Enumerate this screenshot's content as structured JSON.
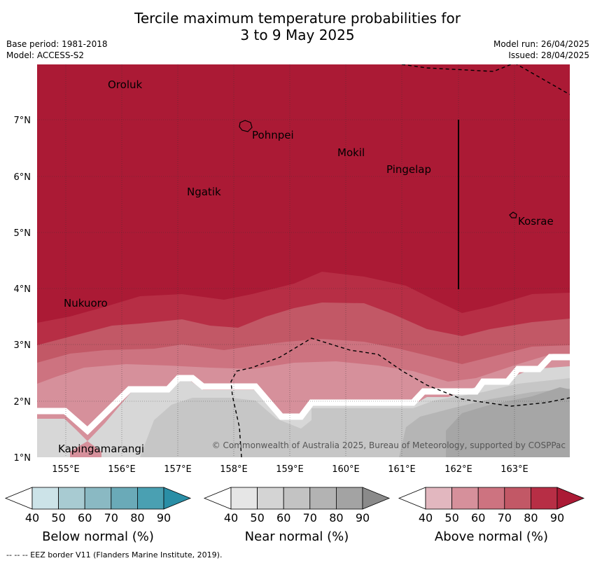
{
  "header": {
    "title_line1": "Tercile maximum temperature probabilities for",
    "title_line2": "3 to 9 May 2025",
    "base_period": "Base period: 1981-2018",
    "model": "Model: ACCESS-S2",
    "model_run": "Model run: 26/04/2025",
    "issued": "Issued: 28/04/2025"
  },
  "map": {
    "lat_labels": [
      "1°N",
      "2°N",
      "3°N",
      "4°N",
      "5°N",
      "6°N",
      "7°N"
    ],
    "lon_labels": [
      "155°E",
      "156°E",
      "157°E",
      "158°E",
      "159°E",
      "160°E",
      "161°E",
      "162°E",
      "163°E"
    ],
    "places": [
      {
        "name": "Oroluk"
      },
      {
        "name": "Pohnpei"
      },
      {
        "name": "Mokil"
      },
      {
        "name": "Pingelap"
      },
      {
        "name": "Ngatik"
      },
      {
        "name": "Kosrae"
      },
      {
        "name": "Nukuoro"
      },
      {
        "name": "Kapingamarangi"
      }
    ],
    "copyright": "© Commonwealth of Australia 2025, Bureau of Meteorology, supported by COSPPac"
  },
  "legend": {
    "bins": [
      "40",
      "50",
      "60",
      "70",
      "80",
      "90"
    ],
    "below": {
      "title": "Below normal (%)",
      "colors": [
        "#ffffff",
        "#cce3e8",
        "#a8cbd2",
        "#8ab9c3",
        "#6aaab8",
        "#4aa0b2",
        "#2a8ea6"
      ]
    },
    "near": {
      "title": "Near normal (%)",
      "colors": [
        "#ffffff",
        "#e6e6e6",
        "#d4d4d4",
        "#c3c3c3",
        "#b3b3b3",
        "#a3a3a3",
        "#8a8a8a"
      ]
    },
    "above": {
      "title": "Above normal (%)",
      "colors": [
        "#ffffff",
        "#e2b7bf",
        "#d6909b",
        "#cd7380",
        "#c25866",
        "#b72e45",
        "#ab1a35"
      ]
    }
  },
  "footnote": "--  --  -- EEZ border V11 (Flanders Marine Institute, 2019)."
}
